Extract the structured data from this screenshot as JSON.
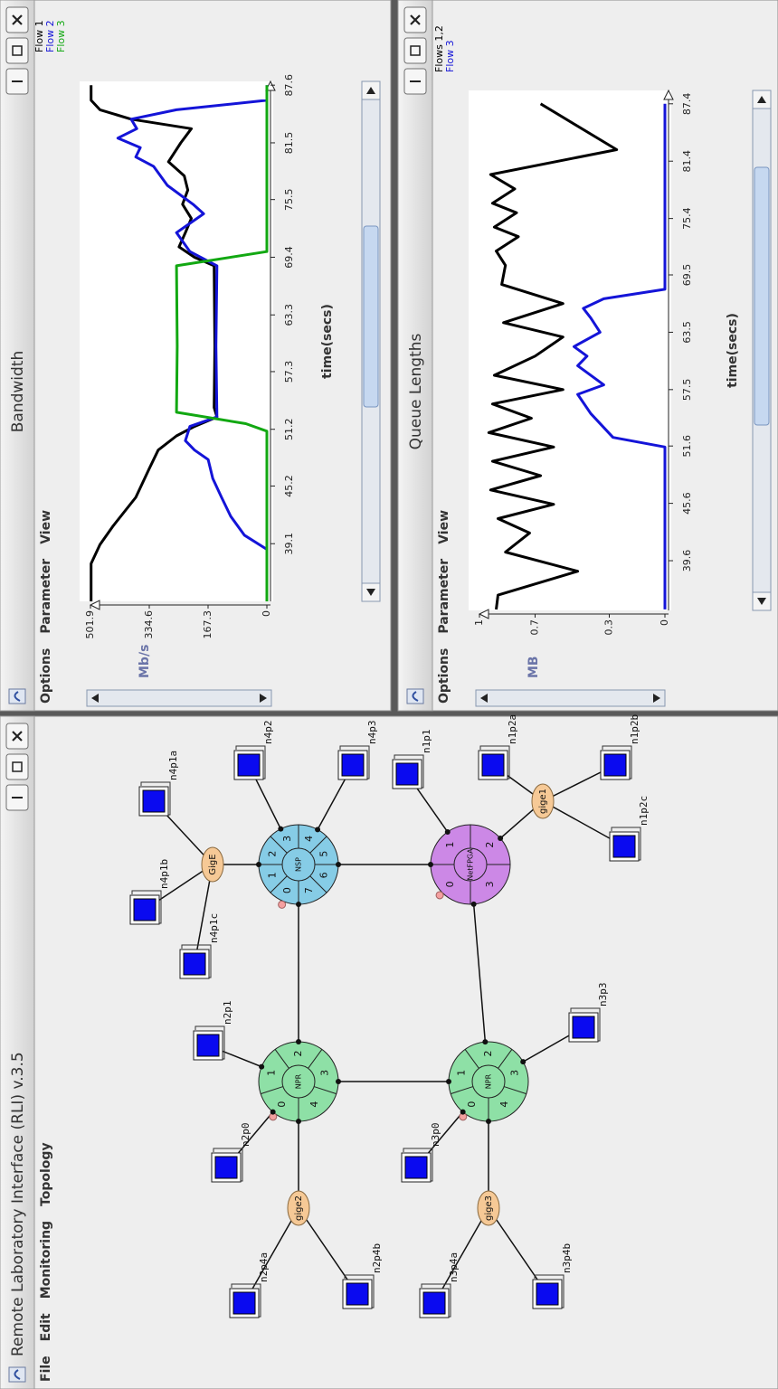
{
  "windows": {
    "main": {
      "title": "Remote Laboratory Interface (RLI) v.3.5",
      "menu": [
        "File",
        "Edit",
        "Monitoring",
        "Topology"
      ]
    },
    "bandwidth": {
      "menu": [
        "Options",
        "Parameter",
        "View"
      ]
    },
    "queue": {
      "menu": [
        "Options",
        "Parameter",
        "View"
      ]
    }
  },
  "topology": {
    "routers": [
      {
        "label": "NPR",
        "ports": [
          "0",
          "1",
          "2",
          "3",
          "4"
        ]
      },
      {
        "label": "NPR",
        "ports": [
          "0",
          "1",
          "2",
          "3",
          "4"
        ]
      },
      {
        "label": "NSP",
        "ports": [
          "0",
          "1",
          "2",
          "3",
          "4",
          "5",
          "6",
          "7"
        ]
      },
      {
        "label": "NetFPGA",
        "ports": [
          "0",
          "1",
          "2",
          "3"
        ]
      }
    ],
    "switches": [
      {
        "label": "gige2"
      },
      {
        "label": "gige3"
      },
      {
        "label": "GigE"
      },
      {
        "label": "gige1"
      }
    ],
    "hosts": [
      {
        "label": "n2p0"
      },
      {
        "label": "n2p1"
      },
      {
        "label": "n2p4a"
      },
      {
        "label": "n2p4b"
      },
      {
        "label": "n3p0"
      },
      {
        "label": "n3p3"
      },
      {
        "label": "n3p4a"
      },
      {
        "label": "n3p4b"
      },
      {
        "label": "n4p1a"
      },
      {
        "label": "n4p1b"
      },
      {
        "label": "n4p1c"
      },
      {
        "label": "n4p2"
      },
      {
        "label": "n4p3"
      },
      {
        "label": "n1p1"
      },
      {
        "label": "n1p2a"
      },
      {
        "label": "n1p2b"
      },
      {
        "label": "n1p2c"
      }
    ]
  },
  "chart_data": [
    {
      "type": "line",
      "title": "Bandwidth",
      "x_label": "time(secs)",
      "y_label": "Mb/s",
      "xlim": [
        33,
        88
      ],
      "xticks": [
        39.1,
        45.2,
        51.2,
        57.3,
        63.3,
        69.4,
        75.5,
        81.5,
        87.6
      ],
      "ylim": [
        0,
        501.9
      ],
      "yticks": [
        0,
        167.3,
        334.6,
        501.9
      ],
      "grid": false,
      "series": [
        {
          "name": "Flow 1",
          "color": "#000000",
          "x": [
            33,
            37,
            39,
            41,
            44,
            47,
            49,
            50.5,
            51.5,
            52.5,
            53.5,
            60,
            68.5,
            69.4,
            70.5,
            72,
            73.5,
            75,
            76.5,
            78,
            79.5,
            81.5,
            83,
            84,
            85,
            86,
            87.6
          ],
          "values": [
            500,
            500,
            475,
            437,
            373,
            335,
            309,
            257,
            206,
            142,
            150,
            148,
            150,
            206,
            250,
            232,
            215,
            240,
            225,
            235,
            280,
            245,
            215,
            386,
            475,
            500,
            500
          ]
        },
        {
          "name": "Flow 2",
          "color": "#1414d8",
          "x": [
            33,
            38.5,
            40,
            42,
            44,
            46,
            48,
            49,
            50,
            51.5,
            52.5,
            60,
            68.5,
            70,
            72,
            74,
            75,
            77,
            79,
            80,
            81,
            82,
            83,
            84,
            85,
            86,
            87.6
          ],
          "values": [
            0,
            0,
            64,
            103,
            129,
            154,
            167,
            206,
            232,
            219,
            142,
            145,
            142,
            219,
            257,
            180,
            210,
            283,
            322,
            373,
            360,
            424,
            370,
            386,
            257,
            0,
            0
          ]
        },
        {
          "name": "Flow 3",
          "color": "#12a812",
          "x": [
            33,
            51,
            51.8,
            53,
            60,
            68.5,
            70,
            87.6
          ],
          "values": [
            0,
            0,
            60,
            257,
            255,
            257,
            0,
            0
          ]
        }
      ]
    },
    {
      "type": "line",
      "title": "Queue Lengths",
      "x_label": "time(secs)",
      "y_label": "MB",
      "xlim": [
        34.4,
        88.8
      ],
      "xticks": [
        39.6,
        45.6,
        51.6,
        57.5,
        63.5,
        69.5,
        75.4,
        81.4,
        87.4
      ],
      "ylim": [
        0,
        1
      ],
      "yticks": [
        0,
        0.3,
        0.7,
        1
      ],
      "grid": false,
      "series": [
        {
          "name": "Flows 1,2",
          "color": "#000000",
          "x": [
            34.5,
            36,
            38.5,
            40.5,
            42.5,
            44,
            45.5,
            47,
            48.5,
            50,
            51.5,
            53,
            54.5,
            56,
            57.5,
            59,
            61,
            63,
            64.5,
            66.5,
            68.5,
            70.5,
            72,
            73.5,
            74.5,
            76,
            77,
            78.5,
            80,
            82.6,
            87.4
          ],
          "values": [
            0.91,
            0.9,
            0.47,
            0.86,
            0.73,
            0.9,
            0.6,
            0.94,
            0.67,
            0.93,
            0.6,
            0.95,
            0.72,
            0.93,
            0.55,
            0.92,
            0.7,
            0.55,
            0.87,
            0.55,
            0.88,
            0.86,
            0.91,
            0.79,
            0.92,
            0.8,
            0.93,
            0.81,
            0.94,
            0.26,
            0.67
          ]
        },
        {
          "name": "Flow 3",
          "color": "#1414d8",
          "x": [
            34.5,
            51.5,
            52.5,
            55,
            57,
            58,
            60,
            61,
            62,
            63.5,
            65,
            66,
            67,
            68,
            87.4
          ],
          "values": [
            0,
            0,
            0.28,
            0.4,
            0.47,
            0.33,
            0.47,
            0.42,
            0.49,
            0.35,
            0.4,
            0.44,
            0.33,
            0,
            0
          ]
        }
      ]
    }
  ]
}
